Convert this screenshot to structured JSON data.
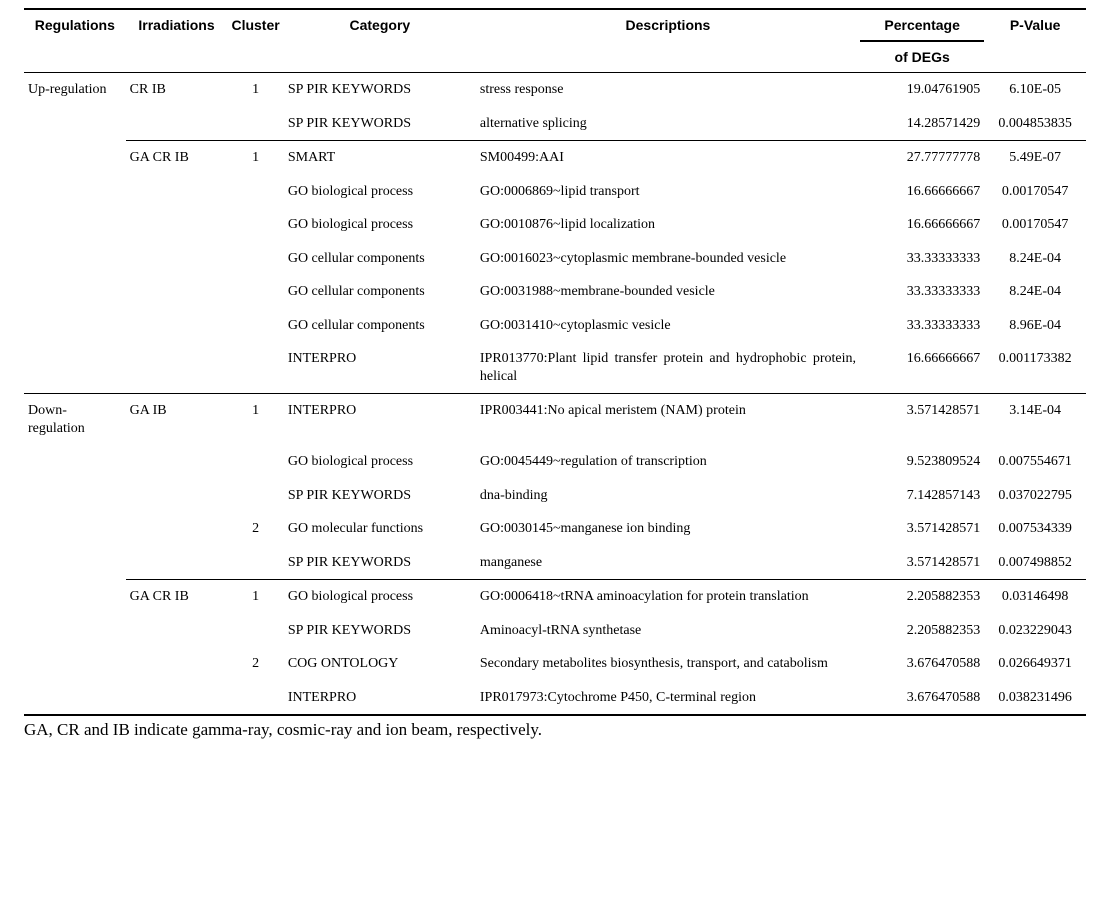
{
  "columns": {
    "regulations": "Regulations",
    "irradiations": "Irradiations",
    "cluster": "Cluster",
    "category": "Category",
    "descriptions": "Descriptions",
    "percentage_l1": "Percentage",
    "percentage_l2": "of DEGs",
    "pvalue": "P-Value"
  },
  "rows": [
    {
      "sep": "top",
      "reg": "Up-regulation",
      "irr": "CR IB",
      "clu": "1",
      "cat": "SP PIR KEYWORDS",
      "desc": "stress response",
      "pct": "19.04761905",
      "p": "6.10E-05"
    },
    {
      "reg": "",
      "irr": "",
      "clu": "",
      "cat": "SP PIR KEYWORDS",
      "desc": "alternative splicing",
      "pct": "14.28571429",
      "p": "0.004853835"
    },
    {
      "sep": "short",
      "reg": "",
      "irr": "GA CR IB",
      "clu": "1",
      "cat": "SMART",
      "desc": "SM00499:AAI",
      "pct": "27.77777778",
      "p": "5.49E-07"
    },
    {
      "reg": "",
      "irr": "",
      "clu": "",
      "cat": "GO biological process",
      "desc": "GO:0006869~lipid transport",
      "pct": "16.66666667",
      "p": "0.00170547"
    },
    {
      "reg": "",
      "irr": "",
      "clu": "",
      "cat": "GO biological process",
      "desc": "GO:0010876~lipid localization",
      "pct": "16.66666667",
      "p": "0.00170547"
    },
    {
      "reg": "",
      "irr": "",
      "clu": "",
      "cat": "GO cellular components",
      "desc": "GO:0016023~cytoplasmic membrane-bounded vesicle",
      "pct": "33.33333333",
      "p": "8.24E-04"
    },
    {
      "reg": "",
      "irr": "",
      "clu": "",
      "cat": "GO cellular components",
      "desc": "GO:0031988~membrane-bounded vesicle",
      "pct": "33.33333333",
      "p": "8.24E-04"
    },
    {
      "reg": "",
      "irr": "",
      "clu": "",
      "cat": "GO cellular components",
      "desc": "GO:0031410~cytoplasmic vesicle",
      "pct": "33.33333333",
      "p": "8.96E-04"
    },
    {
      "reg": "",
      "irr": "",
      "clu": "",
      "cat": "INTERPRO",
      "desc": "IPR013770:Plant lipid transfer protein and hydrophobic protein, helical",
      "pct": "16.66666667",
      "p": "0.001173382"
    },
    {
      "sep": "full",
      "reg": "Down-regulation",
      "irr": "GA IB",
      "clu": "1",
      "cat": "INTERPRO",
      "desc": "IPR003441:No apical meristem (NAM) protein",
      "pct": "3.571428571",
      "p": "3.14E-04"
    },
    {
      "reg": "",
      "irr": "",
      "clu": "",
      "cat": "GO biological process",
      "desc": "GO:0045449~regulation of transcription",
      "pct": "9.523809524",
      "p": "0.007554671"
    },
    {
      "reg": "",
      "irr": "",
      "clu": "",
      "cat": "SP PIR KEYWORDS",
      "desc": "dna-binding",
      "pct": "7.142857143",
      "p": "0.037022795"
    },
    {
      "reg": "",
      "irr": "",
      "clu": "2",
      "cat": "GO molecular functions",
      "desc": "GO:0030145~manganese ion binding",
      "pct": "3.571428571",
      "p": "0.007534339"
    },
    {
      "reg": "",
      "irr": "",
      "clu": "",
      "cat": "SP PIR KEYWORDS",
      "desc": "manganese",
      "pct": "3.571428571",
      "p": "0.007498852"
    },
    {
      "sep": "short",
      "reg": "",
      "irr": "GA CR IB",
      "clu": "1",
      "cat": "GO biological process",
      "desc": "GO:0006418~tRNA aminoacylation for protein translation",
      "pct": "2.205882353",
      "p": "0.03146498"
    },
    {
      "reg": "",
      "irr": "",
      "clu": "",
      "cat": "SP PIR KEYWORDS",
      "desc": "Aminoacyl-tRNA synthetase",
      "pct": "2.205882353",
      "p": "0.023229043"
    },
    {
      "reg": "",
      "irr": "",
      "clu": "2",
      "cat": "COG ONTOLOGY",
      "desc": "Secondary metabolites biosynthesis, transport, and catabolism",
      "pct": "3.676470588",
      "p": "0.026649371"
    },
    {
      "reg": "",
      "irr": "",
      "clu": "",
      "cat": "INTERPRO",
      "desc": "IPR017973:Cytochrome P450, C-terminal region",
      "pct": "3.676470588",
      "p": "0.038231496"
    }
  ],
  "footnote": "GA, CR and IB indicate gamma-ray, cosmic-ray and ion beam, respectively."
}
